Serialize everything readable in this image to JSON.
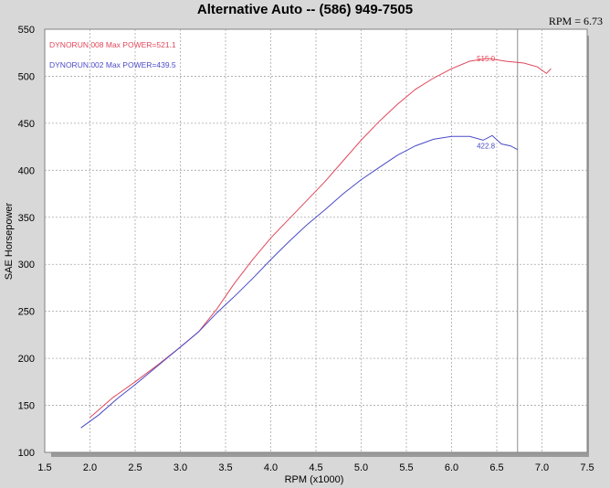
{
  "chart_data": {
    "type": "line",
    "title": "Alternative Auto -- (586) 949-7505",
    "cursor_readout": "RPM = 6.73",
    "cursor_x": 6.73,
    "xlabel": "RPM (x1000)",
    "ylabel": "SAE Horsepower",
    "xlim": [
      1.5,
      7.5
    ],
    "ylim": [
      100,
      550
    ],
    "x_ticks": [
      "1.5",
      "2.0",
      "2.5",
      "3.0",
      "3.5",
      "4.0",
      "4.5",
      "5.0",
      "5.5",
      "6.0",
      "6.5",
      "7.0",
      "7.5"
    ],
    "y_ticks": [
      "100",
      "150",
      "200",
      "250",
      "300",
      "350",
      "400",
      "450",
      "500",
      "550"
    ],
    "grid": true,
    "legend_position": "top-left",
    "series": [
      {
        "name": "DYNORUN.008  Max POWER=521.1",
        "color": "#e0475a",
        "annotation": "515.0",
        "annotation_x": 6.38,
        "annotation_y": 516,
        "points": [
          [
            2.0,
            137
          ],
          [
            2.25,
            158
          ],
          [
            2.5,
            175
          ],
          [
            2.75,
            193
          ],
          [
            3.0,
            212
          ],
          [
            3.2,
            228
          ],
          [
            3.4,
            252
          ],
          [
            3.6,
            280
          ],
          [
            3.8,
            305
          ],
          [
            4.0,
            328
          ],
          [
            4.2,
            348
          ],
          [
            4.4,
            368
          ],
          [
            4.6,
            388
          ],
          [
            4.8,
            410
          ],
          [
            5.0,
            432
          ],
          [
            5.2,
            452
          ],
          [
            5.4,
            470
          ],
          [
            5.6,
            486
          ],
          [
            5.8,
            498
          ],
          [
            6.0,
            508
          ],
          [
            6.2,
            516
          ],
          [
            6.4,
            519
          ],
          [
            6.6,
            516
          ],
          [
            6.8,
            514
          ],
          [
            6.95,
            510
          ],
          [
            7.05,
            503
          ],
          [
            7.1,
            508
          ]
        ]
      },
      {
        "name": "DYNORUN.002  Max POWER=439.5",
        "color": "#4a4ac8",
        "annotation": "422.8",
        "annotation_x": 6.38,
        "annotation_y": 423,
        "points": [
          [
            1.9,
            126
          ],
          [
            2.1,
            140
          ],
          [
            2.3,
            157
          ],
          [
            2.5,
            172
          ],
          [
            2.75,
            192
          ],
          [
            3.0,
            212
          ],
          [
            3.2,
            228
          ],
          [
            3.4,
            248
          ],
          [
            3.6,
            266
          ],
          [
            3.8,
            285
          ],
          [
            4.0,
            305
          ],
          [
            4.2,
            324
          ],
          [
            4.4,
            342
          ],
          [
            4.6,
            358
          ],
          [
            4.8,
            375
          ],
          [
            5.0,
            390
          ],
          [
            5.2,
            403
          ],
          [
            5.4,
            416
          ],
          [
            5.6,
            426
          ],
          [
            5.8,
            433
          ],
          [
            6.0,
            436
          ],
          [
            6.2,
            436
          ],
          [
            6.35,
            432
          ],
          [
            6.45,
            437
          ],
          [
            6.55,
            428
          ],
          [
            6.65,
            426
          ],
          [
            6.73,
            422
          ]
        ]
      }
    ]
  }
}
